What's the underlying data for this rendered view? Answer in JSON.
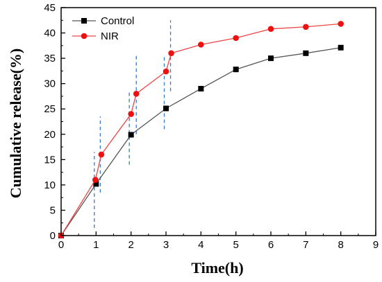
{
  "chart_data": {
    "type": "line",
    "title": "",
    "xlabel": "Time(h)",
    "ylabel": "Cumulative release(%)",
    "xlim": [
      0,
      9
    ],
    "ylim": [
      0,
      45
    ],
    "xticks": [
      0,
      1,
      2,
      3,
      4,
      5,
      6,
      7,
      8,
      9
    ],
    "yticks": [
      0,
      5,
      10,
      15,
      20,
      25,
      30,
      35,
      40,
      45
    ],
    "grid": false,
    "legend_position": "top-left",
    "series": [
      {
        "name": "Control",
        "color": "#000000",
        "line_color": "#555555",
        "marker": "square",
        "x": [
          0,
          1,
          2,
          3,
          4,
          5,
          6,
          7,
          8
        ],
        "y": [
          0,
          10.2,
          19.9,
          25.1,
          29.0,
          32.8,
          35.0,
          36.0,
          37.1
        ]
      },
      {
        "name": "NIR",
        "color": "#ee1111",
        "line_color": "#ee4444",
        "marker": "circle",
        "x": [
          0,
          0.98,
          1.15,
          2.0,
          2.15,
          3.0,
          3.15,
          4,
          5,
          6,
          7,
          8
        ],
        "y": [
          0,
          11.0,
          16.0,
          24.0,
          28.0,
          32.4,
          36.0,
          37.7,
          39.0,
          40.8,
          41.2,
          41.8
        ]
      }
    ],
    "annotations": {
      "laser_on_markers": {
        "description": "dashed vertical segments marking NIR irradiation periods",
        "color": "#3a78c8",
        "segments": [
          {
            "x": 0.95,
            "y0": 1.5,
            "y1": 16.5
          },
          {
            "x": 1.12,
            "y0": 8.5,
            "y1": 23.5
          },
          {
            "x": 1.95,
            "y0": 14.0,
            "y1": 28.5
          },
          {
            "x": 2.15,
            "y0": 20.0,
            "y1": 35.5
          },
          {
            "x": 2.95,
            "y0": 21.0,
            "y1": 35.5
          },
          {
            "x": 3.13,
            "y0": 28.5,
            "y1": 42.5
          }
        ]
      }
    }
  }
}
